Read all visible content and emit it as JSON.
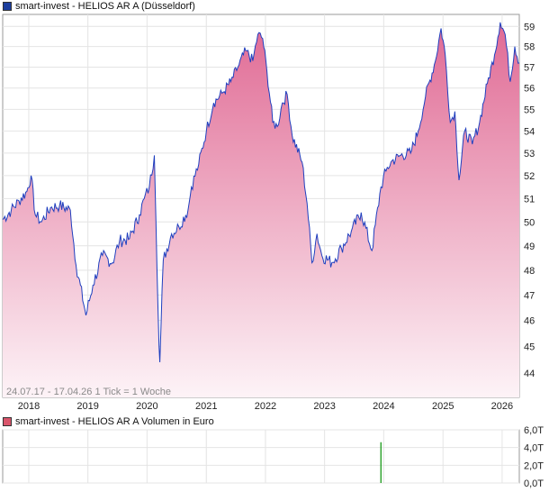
{
  "colors": {
    "price_line": "#1f3fbf",
    "area_top": "#e06a94",
    "area_bottom": "#fdf3f7",
    "volume_bar": "#2aa02a",
    "legend_price": "#1c3e9e",
    "legend_volume": "#d9556b",
    "grid": "#e4e4e4"
  },
  "legend_price": "smart-invest - HELIOS AR A (Düsseldorf)",
  "legend_volume": "smart-invest - HELIOS AR A Volumen in Euro",
  "footer": "24.07.17 - 17.04.26   1 Tick = 1 Woche",
  "chart_data": [
    {
      "type": "area",
      "title": "smart-invest - HELIOS AR A (Düsseldorf)",
      "x_ticks": [
        "2018",
        "2019",
        "2020",
        "2021",
        "2022",
        "2023",
        "2024",
        "2025",
        "2026"
      ],
      "y_ticks": [
        44,
        45,
        46,
        47,
        48,
        49,
        50,
        51,
        52,
        53,
        54,
        55,
        56,
        57,
        58,
        59
      ],
      "y_scale": "log",
      "ylim": [
        43.1,
        59.6
      ],
      "xlim": [
        "2017-07-24",
        "2026-04-17"
      ],
      "grid": true,
      "series": [
        {
          "name": "smart-invest - HELIOS AR A",
          "points": [
            [
              "2017-07-24",
              50.1
            ],
            [
              "2017-09-15",
              50.5
            ],
            [
              "2017-11-01",
              50.9
            ],
            [
              "2017-12-20",
              51.3
            ],
            [
              "2018-01-15",
              52.0
            ],
            [
              "2018-02-10",
              50.3
            ],
            [
              "2018-03-20",
              50.0
            ],
            [
              "2018-05-15",
              50.6
            ],
            [
              "2018-07-10",
              50.7
            ],
            [
              "2018-09-15",
              50.5
            ],
            [
              "2018-10-20",
              48.2
            ],
            [
              "2018-12-20",
              46.2
            ],
            [
              "2019-02-01",
              47.4
            ],
            [
              "2019-04-01",
              48.6
            ],
            [
              "2019-06-01",
              48.3
            ],
            [
              "2019-07-15",
              49.2
            ],
            [
              "2019-09-15",
              49.3
            ],
            [
              "2019-11-15",
              50.3
            ],
            [
              "2019-12-15",
              51.0
            ],
            [
              "2020-01-15",
              51.5
            ],
            [
              "2020-02-15",
              52.9
            ],
            [
              "2020-02-25",
              50.0
            ],
            [
              "2020-03-15",
              45.0
            ],
            [
              "2020-03-20",
              44.4
            ],
            [
              "2020-04-10",
              48.4
            ],
            [
              "2020-06-01",
              49.5
            ],
            [
              "2020-07-15",
              49.8
            ],
            [
              "2020-09-10",
              50.5
            ],
            [
              "2020-10-01",
              51.5
            ],
            [
              "2020-11-15",
              52.5
            ],
            [
              "2021-01-01",
              54.0
            ],
            [
              "2021-02-15",
              55.3
            ],
            [
              "2021-04-15",
              55.8
            ],
            [
              "2021-06-01",
              56.3
            ],
            [
              "2021-07-15",
              57.0
            ],
            [
              "2021-09-01",
              57.8
            ],
            [
              "2021-10-15",
              57.3
            ],
            [
              "2021-11-15",
              58.6
            ],
            [
              "2021-12-15",
              58.4
            ],
            [
              "2022-01-10",
              56.8
            ],
            [
              "2022-02-15",
              54.4
            ],
            [
              "2022-03-15",
              54.2
            ],
            [
              "2022-04-15",
              55.3
            ],
            [
              "2022-05-15",
              55.7
            ],
            [
              "2022-06-15",
              53.8
            ],
            [
              "2022-08-15",
              52.6
            ],
            [
              "2022-09-15",
              50.8
            ],
            [
              "2022-10-15",
              48.3
            ],
            [
              "2022-11-15",
              49.5
            ],
            [
              "2022-12-15",
              48.6
            ],
            [
              "2023-02-15",
              48.3
            ],
            [
              "2023-04-15",
              48.9
            ],
            [
              "2023-06-15",
              49.6
            ],
            [
              "2023-08-15",
              50.4
            ],
            [
              "2023-10-20",
              48.8
            ],
            [
              "2023-12-15",
              51.5
            ],
            [
              "2024-01-15",
              52.2
            ],
            [
              "2024-02-15",
              52.6
            ],
            [
              "2024-04-15",
              52.9
            ],
            [
              "2024-06-15",
              53.0
            ],
            [
              "2024-08-01",
              54.0
            ],
            [
              "2024-09-15",
              55.6
            ],
            [
              "2024-11-15",
              57.3
            ],
            [
              "2024-12-20",
              58.9
            ],
            [
              "2025-01-15",
              57.6
            ],
            [
              "2025-02-15",
              54.4
            ],
            [
              "2025-03-15",
              54.9
            ],
            [
              "2025-04-10",
              51.8
            ],
            [
              "2025-05-15",
              54.0
            ],
            [
              "2025-07-01",
              53.4
            ],
            [
              "2025-08-15",
              54.4
            ],
            [
              "2025-10-01",
              56.2
            ],
            [
              "2025-11-15",
              57.6
            ],
            [
              "2025-12-20",
              59.2
            ],
            [
              "2026-01-20",
              58.6
            ],
            [
              "2026-02-20",
              56.3
            ],
            [
              "2026-03-20",
              58.0
            ],
            [
              "2026-04-17",
              57.2
            ]
          ]
        }
      ]
    },
    {
      "type": "bar",
      "title": "smart-invest - HELIOS AR A Volumen in Euro",
      "y_ticks": [
        "0,0T",
        "2,0T",
        "4,0T",
        "6,0T"
      ],
      "ylim": [
        0,
        6
      ],
      "grid": true,
      "series": [
        {
          "name": "smart-invest - HELIOS AR A Volumen in Euro",
          "points": [
            [
              "2023-12-15",
              4.6
            ]
          ]
        }
      ]
    }
  ]
}
